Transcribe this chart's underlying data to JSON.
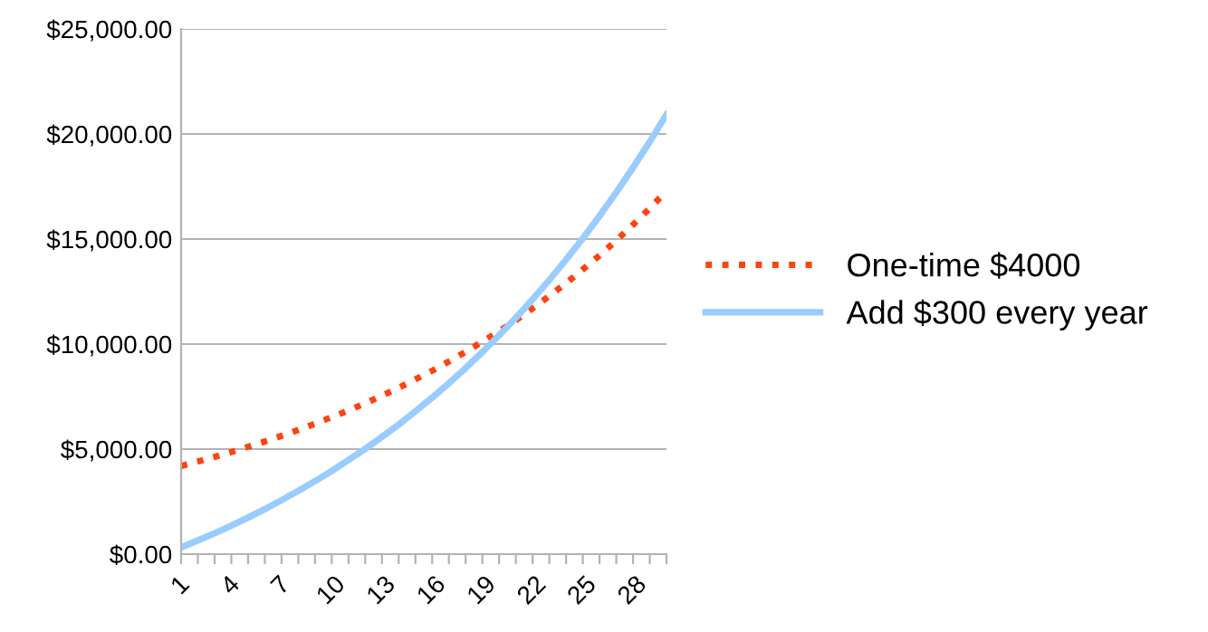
{
  "chart_data": {
    "type": "line",
    "categories": [
      "1",
      null,
      null,
      "4",
      null,
      null,
      "7",
      null,
      null,
      "10",
      null,
      null,
      "13",
      null,
      null,
      "16",
      null,
      null,
      "19",
      null,
      null,
      "22",
      null,
      null,
      "25",
      null,
      null,
      "28",
      null,
      null
    ],
    "series": [
      {
        "name": "One-time $4000",
        "color": "#ff420e",
        "line_style": "dotted",
        "values": [
          4200,
          4410,
          4630,
          4860,
          5110,
          5360,
          5630,
          5910,
          6210,
          6520,
          6840,
          7180,
          7540,
          7920,
          8320,
          8730,
          9170,
          9630,
          10110,
          10610,
          11140,
          11700,
          12290,
          12900,
          13550,
          14220,
          14930,
          15680,
          16460,
          17290
        ]
      },
      {
        "name": "Add $300 every year",
        "color": "#99ccff",
        "line_style": "solid",
        "values": [
          320,
          650,
          990,
          1360,
          1740,
          2140,
          2570,
          3010,
          3470,
          3960,
          4480,
          5010,
          5580,
          6170,
          6800,
          7450,
          8140,
          8860,
          9620,
          10420,
          11250,
          12130,
          13050,
          14020,
          15030,
          16100,
          17220,
          18400,
          19630,
          20930
        ]
      }
    ],
    "ylim": [
      0,
      25000
    ],
    "yticks": [
      {
        "value": 0,
        "label": "$0.00"
      },
      {
        "value": 5000,
        "label": "$5,000.00"
      },
      {
        "value": 10000,
        "label": "$10,000.00"
      },
      {
        "value": 15000,
        "label": "$15,000.00"
      },
      {
        "value": 20000,
        "label": "$20,000.00"
      },
      {
        "value": 25000,
        "label": "$25,000.00"
      }
    ],
    "grid": "y",
    "legend": "right",
    "marker": "none"
  }
}
